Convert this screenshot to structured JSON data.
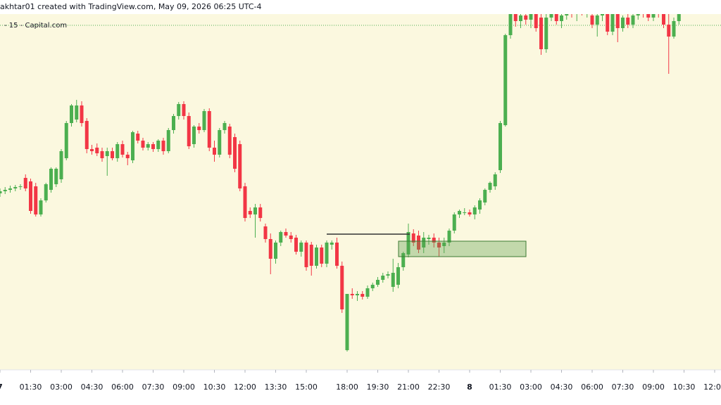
{
  "chart_data": {
    "type": "candlestick",
    "title": "akhtar01 created with TradingView.com, May 09, 2026 06:25 UTC-4",
    "subtitle": "- 15 - Capital.com",
    "up_color": "#4caf50",
    "down_color": "#f23645",
    "ylim": [
      74,
      580
    ],
    "xlim": [
      0,
      141
    ],
    "xticks": [
      {
        "value": 0,
        "label": "7"
      },
      {
        "value": 6,
        "label": "01:30"
      },
      {
        "value": 12,
        "label": "03:00"
      },
      {
        "value": 18,
        "label": "04:30"
      },
      {
        "value": 24,
        "label": "06:00"
      },
      {
        "value": 30,
        "label": "07:30"
      },
      {
        "value": 36,
        "label": "09:00"
      },
      {
        "value": 42,
        "label": "10:30"
      },
      {
        "value": 48,
        "label": "12:00"
      },
      {
        "value": 54,
        "label": "13:30"
      },
      {
        "value": 60,
        "label": "15:00"
      },
      {
        "value": 68,
        "label": "18:00"
      },
      {
        "value": 74,
        "label": "19:30"
      },
      {
        "value": 80,
        "label": "21:00"
      },
      {
        "value": 86,
        "label": "22:30"
      },
      {
        "value": 92,
        "label": "8"
      },
      {
        "value": 98,
        "label": "01:30"
      },
      {
        "value": 104,
        "label": "03:00"
      },
      {
        "value": 110,
        "label": "04:30"
      },
      {
        "value": 116,
        "label": "06:00"
      },
      {
        "value": 122,
        "label": "07:30"
      },
      {
        "value": 128,
        "label": "09:00"
      },
      {
        "value": 134,
        "label": "10:30"
      },
      {
        "value": 140,
        "label": "12:00"
      }
    ],
    "candles": [
      [
        325,
        332,
        320,
        328
      ],
      [
        328,
        334,
        324,
        330
      ],
      [
        330,
        336,
        326,
        332
      ],
      [
        332,
        337,
        328,
        334
      ],
      [
        334,
        338,
        330,
        335
      ],
      [
        347,
        352,
        328,
        332
      ],
      [
        342,
        346,
        296,
        300
      ],
      [
        335,
        340,
        292,
        295
      ],
      [
        295,
        318,
        292,
        315
      ],
      [
        315,
        340,
        312,
        338
      ],
      [
        330,
        362,
        326,
        360
      ],
      [
        338,
        362,
        334,
        360
      ],
      [
        345,
        388,
        340,
        385
      ],
      [
        375,
        428,
        372,
        425
      ],
      [
        425,
        452,
        420,
        450
      ],
      [
        430,
        458,
        426,
        450
      ],
      [
        450,
        456,
        420,
        425
      ],
      [
        428,
        432,
        382,
        388
      ],
      [
        388,
        394,
        380,
        385
      ],
      [
        390,
        396,
        378,
        382
      ],
      [
        385,
        390,
        370,
        375
      ],
      [
        378,
        390,
        350,
        385
      ],
      [
        385,
        390,
        372,
        375
      ],
      [
        375,
        398,
        370,
        395
      ],
      [
        395,
        400,
        376,
        380
      ],
      [
        380,
        384,
        365,
        375
      ],
      [
        372,
        414,
        368,
        412
      ],
      [
        410,
        414,
        396,
        400
      ],
      [
        400,
        404,
        386,
        390
      ],
      [
        390,
        398,
        386,
        395
      ],
      [
        395,
        398,
        384,
        388
      ],
      [
        388,
        402,
        384,
        400
      ],
      [
        400,
        404,
        380,
        385
      ],
      [
        385,
        418,
        382,
        415
      ],
      [
        415,
        438,
        410,
        435
      ],
      [
        435,
        455,
        430,
        452
      ],
      [
        452,
        456,
        430,
        435
      ],
      [
        435,
        440,
        388,
        392
      ],
      [
        395,
        422,
        390,
        420
      ],
      [
        420,
        425,
        410,
        415
      ],
      [
        415,
        445,
        412,
        442
      ],
      [
        442,
        446,
        385,
        390
      ],
      [
        390,
        400,
        370,
        380
      ],
      [
        380,
        418,
        376,
        415
      ],
      [
        415,
        428,
        410,
        425
      ],
      [
        420,
        424,
        375,
        380
      ],
      [
        405,
        410,
        355,
        360
      ],
      [
        395,
        400,
        328,
        332
      ],
      [
        335,
        340,
        285,
        290
      ],
      [
        300,
        305,
        290,
        295
      ],
      [
        295,
        310,
        262,
        305
      ],
      [
        305,
        310,
        285,
        290
      ],
      [
        278,
        282,
        255,
        260
      ],
      [
        260,
        268,
        210,
        232
      ],
      [
        232,
        258,
        225,
        255
      ],
      [
        255,
        272,
        250,
        270
      ],
      [
        270,
        275,
        262,
        265
      ],
      [
        265,
        270,
        255,
        260
      ],
      [
        262,
        266,
        238,
        242
      ],
      [
        242,
        258,
        235,
        255
      ],
      [
        255,
        258,
        215,
        220
      ],
      [
        252,
        256,
        208,
        222
      ],
      [
        222,
        252,
        218,
        248
      ],
      [
        248,
        252,
        220,
        225
      ],
      [
        225,
        258,
        220,
        255
      ],
      [
        252,
        258,
        245,
        255
      ],
      [
        255,
        262,
        218,
        222
      ],
      [
        222,
        228,
        155,
        160
      ],
      [
        102,
        182,
        100,
        182
      ],
      [
        182,
        190,
        175,
        180
      ],
      [
        180,
        186,
        172,
        182
      ],
      [
        182,
        186,
        174,
        178
      ],
      [
        178,
        194,
        175,
        190
      ],
      [
        190,
        198,
        186,
        195
      ],
      [
        195,
        206,
        192,
        202
      ],
      [
        202,
        212,
        198,
        208
      ],
      [
        208,
        214,
        204,
        210
      ],
      [
        192,
        232,
        185,
        212
      ],
      [
        195,
        226,
        190,
        220
      ],
      [
        220,
        242,
        215,
        240
      ],
      [
        238,
        282,
        234,
        270
      ],
      [
        268,
        274,
        250,
        255
      ],
      [
        265,
        272,
        240,
        245
      ],
      [
        248,
        270,
        240,
        262
      ],
      [
        260,
        266,
        252,
        262
      ],
      [
        262,
        268,
        248,
        255
      ],
      [
        255,
        262,
        235,
        248
      ],
      [
        250,
        262,
        240,
        255
      ],
      [
        255,
        275,
        250,
        272
      ],
      [
        272,
        298,
        268,
        295
      ],
      [
        295,
        302,
        290,
        300
      ],
      [
        298,
        304,
        294,
        298
      ],
      [
        298,
        302,
        292,
        295
      ],
      [
        295,
        308,
        288,
        305
      ],
      [
        302,
        318,
        296,
        315
      ],
      [
        312,
        332,
        308,
        330
      ],
      [
        330,
        342,
        326,
        340
      ],
      [
        335,
        355,
        330,
        352
      ],
      [
        358,
        428,
        354,
        425
      ],
      [
        422,
        552,
        420,
        550
      ],
      [
        550,
        590,
        545,
        585
      ],
      [
        580,
        590,
        562,
        570
      ],
      [
        570,
        582,
        560,
        578
      ],
      [
        578,
        590,
        565,
        572
      ],
      [
        572,
        585,
        560,
        580
      ],
      [
        580,
        590,
        555,
        560
      ],
      [
        575,
        588,
        522,
        530
      ],
      [
        530,
        580,
        525,
        575
      ],
      [
        575,
        590,
        570,
        585
      ],
      [
        585,
        590,
        565,
        570
      ],
      [
        570,
        582,
        560,
        578
      ],
      [
        578,
        590,
        572,
        585
      ],
      [
        585,
        592,
        575,
        580
      ],
      [
        580,
        590,
        570,
        585
      ],
      [
        585,
        592,
        578,
        582
      ],
      [
        582,
        590,
        575,
        588
      ],
      [
        578,
        586,
        560,
        565
      ],
      [
        565,
        582,
        548,
        578
      ],
      [
        578,
        588,
        570,
        580
      ],
      [
        580,
        586,
        550,
        555
      ],
      [
        555,
        585,
        550,
        580
      ],
      [
        580,
        590,
        540,
        560
      ],
      [
        560,
        578,
        555,
        575
      ],
      [
        575,
        588,
        560,
        565
      ],
      [
        565,
        582,
        560,
        578
      ],
      [
        578,
        590,
        572,
        585
      ],
      [
        585,
        592,
        575,
        580
      ],
      [
        580,
        590,
        570,
        575
      ],
      [
        575,
        590,
        570,
        585
      ],
      [
        585,
        592,
        575,
        580
      ],
      [
        580,
        588,
        560,
        565
      ],
      [
        565,
        585,
        495,
        548
      ],
      [
        548,
        575,
        545,
        570
      ],
      [
        570,
        595,
        565,
        590
      ]
    ]
  }
}
